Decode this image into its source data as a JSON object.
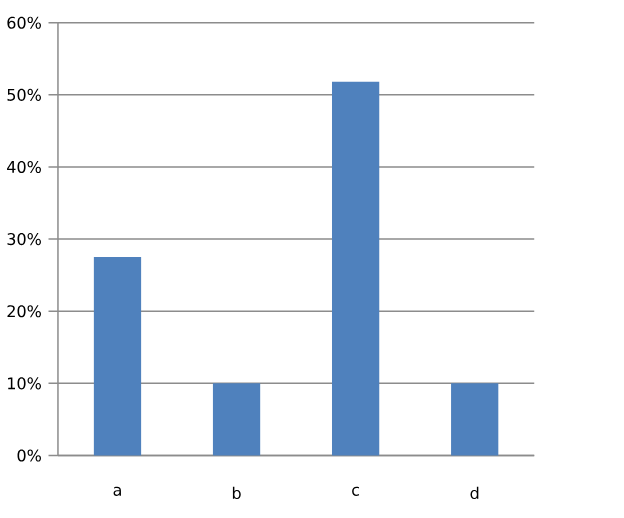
{
  "chart_data": {
    "type": "bar",
    "categories": [
      "a",
      "b",
      "c",
      "d"
    ],
    "values": [
      27.5,
      10,
      51.8,
      10
    ],
    "color": "#4f81bd",
    "ylim": [
      0,
      60
    ],
    "yticks": [
      {
        "value": 0,
        "label": "0%"
      },
      {
        "value": 10,
        "label": "10%"
      },
      {
        "value": 20,
        "label": "20%"
      },
      {
        "value": 30,
        "label": "30%"
      },
      {
        "value": 40,
        "label": "40%"
      },
      {
        "value": 50,
        "label": "50%"
      },
      {
        "value": 60,
        "label": "60%"
      }
    ],
    "grid": "y"
  }
}
